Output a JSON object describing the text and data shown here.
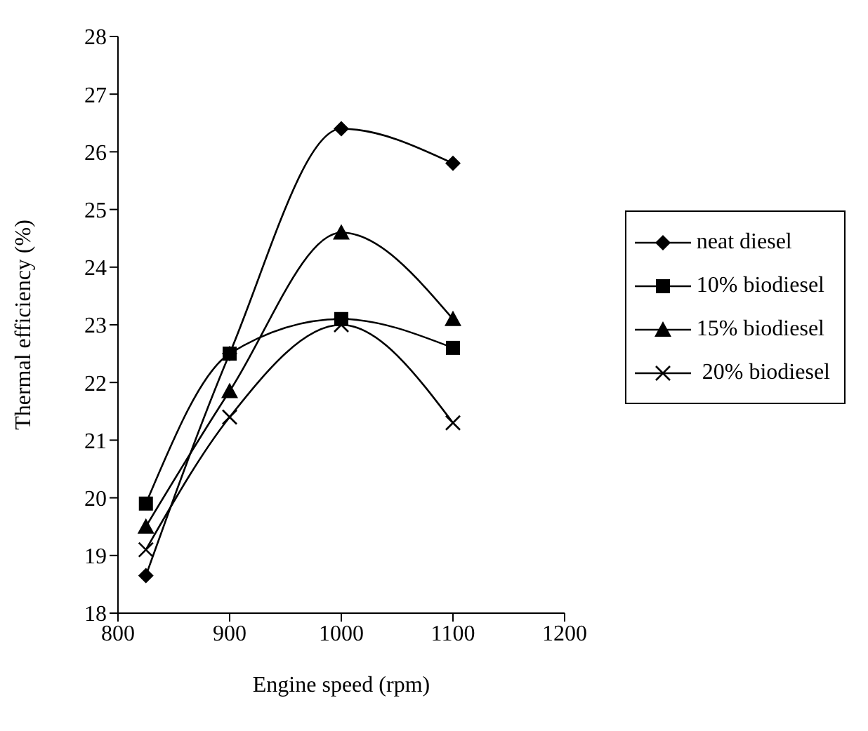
{
  "chart_data": {
    "type": "line",
    "xlabel": "Engine speed (rpm)",
    "ylabel": "Thermal efficiency (%)",
    "x": [
      825,
      900,
      1000,
      1100
    ],
    "xlim": [
      800,
      1200
    ],
    "xticks": [
      800,
      900,
      1000,
      1100,
      1200
    ],
    "ylim": [
      18,
      28
    ],
    "yticks": [
      18,
      19,
      20,
      21,
      22,
      23,
      24,
      25,
      26,
      27,
      28
    ],
    "grid": false,
    "legend": "right",
    "line_style": "solid",
    "series": [
      {
        "name": "neat diesel",
        "color": "#000000",
        "marker": "diamond",
        "values": [
          18.65,
          22.5,
          26.4,
          25.8
        ]
      },
      {
        "name": "10% biodiesel",
        "color": "#000000",
        "marker": "square",
        "values": [
          19.9,
          22.5,
          23.1,
          22.6
        ]
      },
      {
        "name": "15% biodiesel",
        "color": "#000000",
        "marker": "triangle",
        "values": [
          19.5,
          21.85,
          24.6,
          23.1
        ]
      },
      {
        "name": " 20% biodiesel",
        "color": "#000000",
        "marker": "cross",
        "values": [
          19.1,
          21.4,
          23.0,
          21.3
        ]
      }
    ]
  }
}
